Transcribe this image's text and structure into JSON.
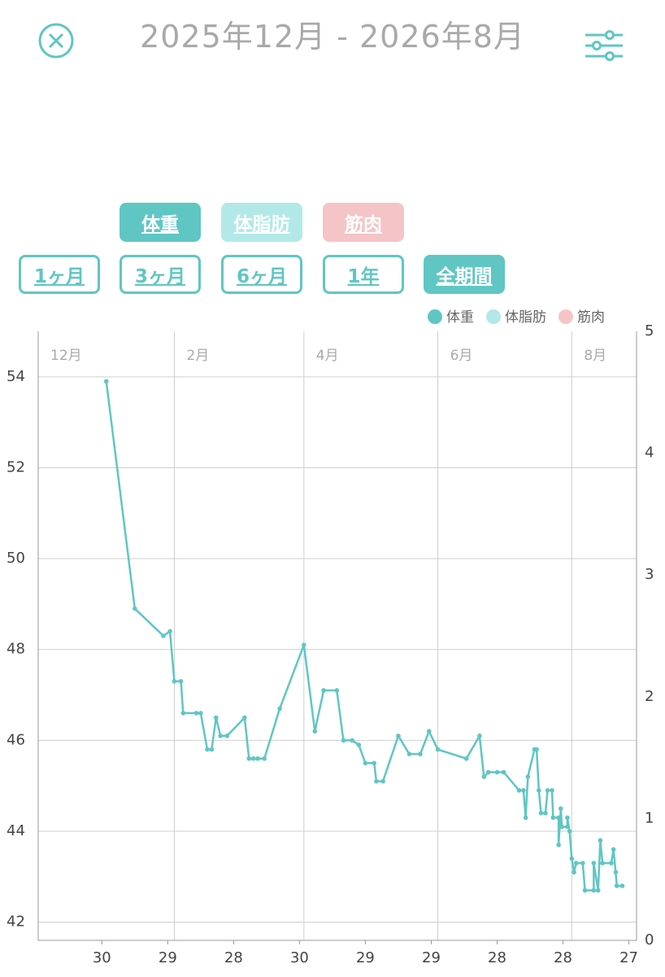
{
  "header": {
    "title": "2025年12月 - 2026年8月"
  },
  "metric_buttons": [
    {
      "label": "体重",
      "color": "#5fc6c4"
    },
    {
      "label": "体脂肪",
      "color": "#b2e9e8"
    },
    {
      "label": "筋肉",
      "color": "#f5c4c6"
    }
  ],
  "period_buttons": [
    {
      "label": "1ヶ月",
      "selected": false
    },
    {
      "label": "3ヶ月",
      "selected": false
    },
    {
      "label": "6ヶ月",
      "selected": false
    },
    {
      "label": "1年",
      "selected": false
    },
    {
      "label": "全期間",
      "selected": true
    }
  ],
  "chart_data": {
    "type": "line",
    "legend": [
      {
        "name": "体重",
        "color": "#5fc6c4"
      },
      {
        "name": "体脂肪",
        "color": "#b2e9e8"
      },
      {
        "name": "筋肉",
        "color": "#f5c4c6"
      }
    ],
    "series": [
      {
        "name": "体重",
        "color": "#5fc6c4",
        "x": [
          31,
          44,
          57,
          60,
          62,
          65,
          66,
          72,
          74,
          77,
          79,
          81,
          83,
          86,
          94,
          96,
          98,
          100,
          103,
          110,
          121,
          126,
          130,
          136,
          139,
          143,
          146,
          149,
          153,
          154,
          157,
          164,
          169,
          174,
          178,
          182,
          195,
          201,
          203,
          205,
          209,
          212,
          219,
          221,
          222,
          223,
          226,
          227,
          228,
          229,
          231,
          232,
          234,
          234.5,
          237,
          237,
          238,
          238.5,
          241,
          241,
          242,
          243,
          244,
          245,
          248,
          249,
          253,
          253,
          255,
          256,
          257,
          261,
          262,
          263,
          263.5,
          266
        ],
        "values": [
          53.9,
          48.9,
          48.3,
          48.4,
          47.3,
          47.3,
          46.6,
          46.6,
          46.6,
          45.8,
          45.8,
          46.5,
          46.1,
          46.1,
          46.5,
          45.6,
          45.6,
          45.6,
          45.6,
          46.7,
          48.1,
          46.2,
          47.1,
          47.1,
          46.0,
          46.0,
          45.9,
          45.5,
          45.5,
          45.1,
          45.1,
          46.1,
          45.7,
          45.7,
          46.2,
          45.8,
          45.6,
          46.1,
          45.2,
          45.3,
          45.3,
          45.3,
          44.9,
          44.9,
          44.3,
          45.2,
          45.8,
          45.8,
          44.9,
          44.4,
          44.4,
          44.9,
          44.9,
          44.3,
          44.3,
          43.7,
          44.5,
          44.1,
          44.1,
          44.3,
          44.0,
          43.4,
          43.1,
          43.3,
          43.3,
          42.7,
          42.7,
          43.3,
          42.7,
          43.8,
          43.3,
          43.3,
          43.6,
          43.1,
          42.8,
          42.8
        ]
      }
    ],
    "xlim": [
      0,
      272.5
    ],
    "xticks": [
      {
        "value": 29,
        "label": "30"
      },
      {
        "value": 59,
        "label": "29"
      },
      {
        "value": 89,
        "label": "28"
      },
      {
        "value": 119,
        "label": "30"
      },
      {
        "value": 149,
        "label": "29"
      },
      {
        "value": 179,
        "label": "29"
      },
      {
        "value": 209,
        "label": "28"
      },
      {
        "value": 239,
        "label": "28"
      },
      {
        "value": 269,
        "label": "27"
      }
    ],
    "month_ticks": [
      {
        "value": 0,
        "label": "12月"
      },
      {
        "value": 62,
        "label": "2月"
      },
      {
        "value": 121,
        "label": "4月"
      },
      {
        "value": 182,
        "label": "6月"
      },
      {
        "value": 243,
        "label": "8月"
      }
    ],
    "ylim": [
      41.6,
      55
    ],
    "yticks": [
      42,
      44,
      46,
      48,
      50,
      52,
      54
    ],
    "y2lim": [
      0,
      5
    ],
    "y2ticks": [
      0,
      1,
      2,
      3,
      4,
      5
    ],
    "grid": true
  }
}
